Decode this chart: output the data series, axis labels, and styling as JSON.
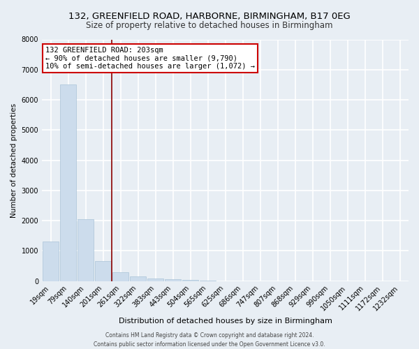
{
  "title1": "132, GREENFIELD ROAD, HARBORNE, BIRMINGHAM, B17 0EG",
  "title2": "Size of property relative to detached houses in Birmingham",
  "xlabel": "Distribution of detached houses by size in Birmingham",
  "ylabel": "Number of detached properties",
  "bar_labels": [
    "19sqm",
    "79sqm",
    "140sqm",
    "201sqm",
    "261sqm",
    "322sqm",
    "383sqm",
    "443sqm",
    "504sqm",
    "565sqm",
    "625sqm",
    "686sqm",
    "747sqm",
    "807sqm",
    "868sqm",
    "929sqm",
    "990sqm",
    "1050sqm",
    "1111sqm",
    "1172sqm",
    "1232sqm"
  ],
  "bar_values": [
    1300,
    6500,
    2050,
    650,
    280,
    150,
    90,
    55,
    30,
    5,
    0,
    0,
    0,
    0,
    0,
    0,
    0,
    0,
    0,
    0,
    0
  ],
  "bar_color": "#ccdcec",
  "bar_edgecolor": "#aac4d8",
  "vline_x_index": 3,
  "vline_color": "#8b0000",
  "ylim": [
    0,
    8000
  ],
  "yticks": [
    0,
    1000,
    2000,
    3000,
    4000,
    5000,
    6000,
    7000,
    8000
  ],
  "annotation_line1": "132 GREENFIELD ROAD: 203sqm",
  "annotation_line2": "← 90% of detached houses are smaller (9,790)",
  "annotation_line3": "10% of semi-detached houses are larger (1,072) →",
  "annotation_box_facecolor": "#ffffff",
  "annotation_box_edgecolor": "#cc0000",
  "footer1": "Contains HM Land Registry data © Crown copyright and database right 2024.",
  "footer2": "Contains public sector information licensed under the Open Government Licence v3.0.",
  "fig_facecolor": "#e8eef4",
  "plot_facecolor": "#e8eef4",
  "grid_color": "#ffffff",
  "grid_linewidth": 1.2,
  "title1_fontsize": 9.5,
  "title2_fontsize": 8.5,
  "ylabel_fontsize": 7.5,
  "xlabel_fontsize": 8,
  "tick_fontsize": 7,
  "annot_fontsize": 7.5,
  "footer_fontsize": 5.5
}
